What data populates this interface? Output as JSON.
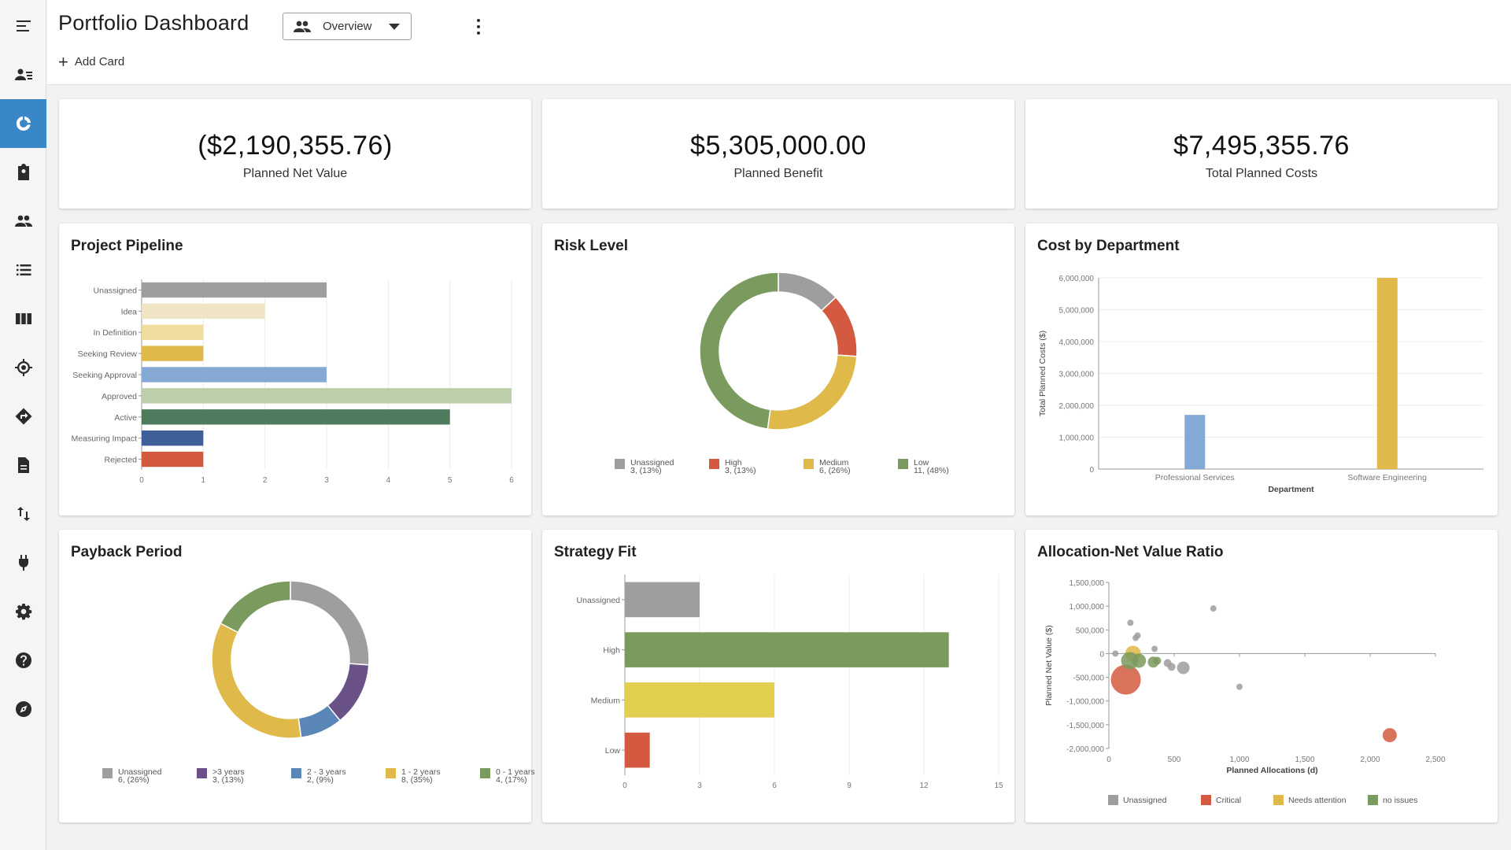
{
  "header": {
    "title": "Portfolio Dashboard",
    "view_label": "Overview",
    "add_card_label": "Add Card"
  },
  "sidebar": {
    "items": [
      {
        "icon": "menu-icon"
      },
      {
        "icon": "people-list-icon"
      },
      {
        "icon": "donut-chart-icon",
        "active": true
      },
      {
        "icon": "clipboard-person-icon"
      },
      {
        "icon": "people-icon"
      },
      {
        "icon": "list-icon"
      },
      {
        "icon": "columns-icon"
      },
      {
        "icon": "target-icon"
      },
      {
        "icon": "directions-icon"
      },
      {
        "icon": "document-icon"
      },
      {
        "icon": "swap-vertical-icon"
      },
      {
        "icon": "plug-icon"
      },
      {
        "icon": "settings-icon"
      },
      {
        "icon": "help-icon"
      },
      {
        "icon": "compass-icon"
      }
    ]
  },
  "kpis": [
    {
      "value": "($2,190,355.76)",
      "label": "Planned Net Value"
    },
    {
      "value": "$5,305,000.00",
      "label": "Planned Benefit"
    },
    {
      "value": "$7,495,355.76",
      "label": "Total Planned Costs"
    }
  ],
  "cards": {
    "pipeline": "Project Pipeline",
    "risk": "Risk Level",
    "cost": "Cost by Department",
    "payback": "Payback Period",
    "strategy": "Strategy Fit",
    "allocation": "Allocation-Net Value Ratio"
  },
  "colors": {
    "gray": "#9e9e9e",
    "red": "#d35a40",
    "yellow": "#dfb94a",
    "green": "#7a9a5e",
    "blue": "#85a9d5",
    "purple": "#6a5188",
    "steel": "#5a86b8",
    "darkgreen": "#4f7a5e",
    "navy": "#3f5f9a"
  },
  "chart_data": [
    {
      "id": "pipeline",
      "type": "bar",
      "orientation": "horizontal",
      "categories": [
        "Unassigned",
        "Idea",
        "In Definition",
        "Seeking Review",
        "Seeking Approval",
        "Approved",
        "Active",
        "Measuring Impact",
        "Rejected"
      ],
      "values": [
        3,
        2,
        1,
        1,
        3,
        6,
        5,
        1,
        1
      ],
      "colors": [
        "#9e9e9e",
        "#efe5c4",
        "#f0dc9c",
        "#dfb94a",
        "#85a9d5",
        "#bccfaa",
        "#4f7a5e",
        "#3f5f9a",
        "#d35a40"
      ],
      "xlim": [
        0,
        6
      ],
      "xticks": [
        0,
        1,
        2,
        3,
        4,
        5,
        6
      ]
    },
    {
      "id": "risk",
      "type": "pie",
      "donut": true,
      "slices": [
        {
          "name": "Unassigned",
          "value": 3,
          "label": "3, (13%)",
          "color": "#9e9e9e"
        },
        {
          "name": "High",
          "value": 3,
          "label": "3, (13%)",
          "color": "#d35a40"
        },
        {
          "name": "Medium",
          "value": 6,
          "label": "6, (26%)",
          "color": "#dfb94a"
        },
        {
          "name": "Low",
          "value": 11,
          "label": "11, (48%)",
          "color": "#7a9a5e"
        }
      ]
    },
    {
      "id": "cost",
      "type": "bar",
      "categories": [
        "Professional Services",
        "Software Engineering"
      ],
      "values": [
        1700000,
        6000000
      ],
      "colors": [
        "#85a9d5",
        "#dfb94a"
      ],
      "xlabel": "Department",
      "ylabel": "Total Planned Costs ($)",
      "ylim": [
        0,
        6000000
      ],
      "yticks": [
        "0",
        "1,000,000",
        "2,000,000",
        "3,000,000",
        "4,000,000",
        "5,000,000",
        "6,000,000"
      ]
    },
    {
      "id": "payback",
      "type": "pie",
      "donut": true,
      "slices": [
        {
          "name": "Unassigned",
          "value": 6,
          "label": "6, (26%)",
          "color": "#9e9e9e"
        },
        {
          "name": ">3 years",
          "value": 3,
          "label": "3, (13%)",
          "color": "#6a5188"
        },
        {
          "name": "2 - 3 years",
          "value": 2,
          "label": "2, (9%)",
          "color": "#5a86b8"
        },
        {
          "name": "1 - 2 years",
          "value": 8,
          "label": "8, (35%)",
          "color": "#dfb94a"
        },
        {
          "name": "0 - 1 years",
          "value": 4,
          "label": "4, (17%)",
          "color": "#7a9a5e"
        }
      ]
    },
    {
      "id": "strategy",
      "type": "bar",
      "orientation": "horizontal",
      "categories": [
        "Unassigned",
        "High",
        "Medium",
        "Low"
      ],
      "values": [
        3,
        13,
        6,
        1
      ],
      "colors": [
        "#9e9e9e",
        "#7a9a5e",
        "#e3cf4f",
        "#d35a40"
      ],
      "xlim": [
        0,
        15
      ],
      "xticks": [
        0,
        3,
        6,
        9,
        12,
        15
      ]
    },
    {
      "id": "allocation",
      "type": "scatter",
      "xlabel": "Planned Allocations (d)",
      "ylabel": "Planned Net Value ($)",
      "xlim": [
        0,
        2500
      ],
      "ylim": [
        -2000000,
        1500000
      ],
      "xticks": [
        "0",
        "500",
        "1,000",
        "1,500",
        "2,000",
        "2,500"
      ],
      "yticks": [
        "1,500,000",
        "1,000,000",
        "500,000",
        "0",
        "-500,000",
        "-1,000,000",
        "-1,500,000",
        "-2,000,000"
      ],
      "legend": [
        {
          "name": "Unassigned",
          "color": "#9e9e9e"
        },
        {
          "name": "Critical",
          "color": "#d35a40"
        },
        {
          "name": "Needs attention",
          "color": "#dfb94a"
        },
        {
          "name": "no issues",
          "color": "#7a9a5e"
        }
      ],
      "points": [
        {
          "x": 50,
          "y": 0,
          "r": 4,
          "s": 0
        },
        {
          "x": 165,
          "y": 650000,
          "r": 4,
          "s": 0
        },
        {
          "x": 220,
          "y": 380000,
          "r": 4,
          "s": 0
        },
        {
          "x": 205,
          "y": 330000,
          "r": 4,
          "s": 0
        },
        {
          "x": 350,
          "y": 100000,
          "r": 4,
          "s": 0
        },
        {
          "x": 450,
          "y": -200000,
          "r": 5,
          "s": 0
        },
        {
          "x": 480,
          "y": -280000,
          "r": 5,
          "s": 0
        },
        {
          "x": 570,
          "y": -300000,
          "r": 8,
          "s": 0
        },
        {
          "x": 800,
          "y": 950000,
          "r": 4,
          "s": 0
        },
        {
          "x": 1000,
          "y": -700000,
          "r": 4,
          "s": 0
        },
        {
          "x": 130,
          "y": -550000,
          "r": 19,
          "s": 1
        },
        {
          "x": 2150,
          "y": -1720000,
          "r": 9,
          "s": 1
        },
        {
          "x": 185,
          "y": 0,
          "r": 10,
          "s": 2
        },
        {
          "x": 160,
          "y": -150000,
          "r": 11,
          "s": 3
        },
        {
          "x": 230,
          "y": -150000,
          "r": 9,
          "s": 3
        },
        {
          "x": 340,
          "y": -180000,
          "r": 7,
          "s": 3
        },
        {
          "x": 370,
          "y": -150000,
          "r": 5,
          "s": 3
        }
      ]
    }
  ]
}
